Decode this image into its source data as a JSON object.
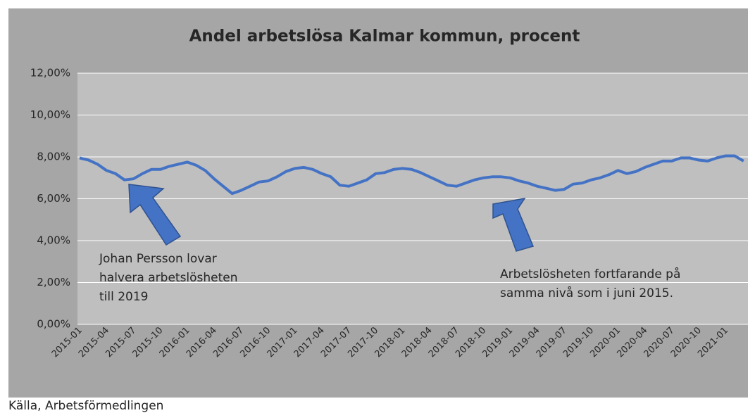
{
  "chart_data": {
    "type": "line",
    "title": "Andel arbetslösa Kalmar kommun, procent",
    "source": "Källa, Arbetsförmedlingen",
    "color": "#4472c4",
    "grid": true,
    "categories": [
      "2015-01",
      null,
      null,
      "2015-04",
      null,
      null,
      "2015-07",
      null,
      null,
      "2015-10",
      null,
      null,
      "2016-01",
      null,
      null,
      "2016-04",
      null,
      null,
      "2016-07",
      null,
      null,
      "2016-10",
      null,
      null,
      "2017-01",
      null,
      null,
      "2017-04",
      null,
      null,
      "2017-07",
      null,
      null,
      "2017-10",
      null,
      null,
      "2018-01",
      null,
      null,
      "2018-04",
      null,
      null,
      "2018-07",
      null,
      null,
      "2018-10",
      null,
      null,
      "2019-01",
      null,
      null,
      "2019-04",
      null,
      null,
      "2019-07",
      null,
      null,
      "2019-10",
      null,
      null,
      "2020-01",
      null,
      null,
      "2020-04",
      null,
      null,
      "2020-07",
      null,
      null,
      "2020-10",
      null,
      null,
      "2021-01",
      null,
      null
    ],
    "values": [
      7.95,
      7.85,
      7.65,
      7.35,
      7.2,
      6.9,
      6.95,
      7.2,
      7.4,
      7.4,
      7.55,
      7.65,
      7.75,
      7.6,
      7.35,
      6.95,
      6.6,
      6.25,
      6.4,
      6.6,
      6.8,
      6.85,
      7.05,
      7.3,
      7.45,
      7.5,
      7.4,
      7.2,
      7.05,
      6.65,
      6.6,
      6.75,
      6.9,
      7.2,
      7.25,
      7.4,
      7.45,
      7.4,
      7.25,
      7.05,
      6.85,
      6.65,
      6.6,
      6.75,
      6.9,
      7.0,
      7.05,
      7.05,
      7.0,
      6.85,
      6.75,
      6.6,
      6.5,
      6.4,
      6.45,
      6.7,
      6.75,
      6.9,
      7.0,
      7.15,
      7.35,
      7.2,
      7.3,
      7.5,
      7.65,
      7.8,
      7.8,
      7.95,
      7.95,
      7.85,
      7.8,
      7.95,
      8.05,
      8.05,
      7.8
    ],
    "ylim": [
      0,
      12
    ],
    "yticks": [
      {
        "value": 0,
        "label": "0,00%"
      },
      {
        "value": 2,
        "label": "2,00%"
      },
      {
        "value": 4,
        "label": "4,00%"
      },
      {
        "value": 6,
        "label": "6,00%"
      },
      {
        "value": 8,
        "label": "8,00%"
      },
      {
        "value": 10,
        "label": "10,00%"
      },
      {
        "value": 12,
        "label": "12,00%"
      }
    ],
    "annotations": [
      {
        "lines": [
          "Johan Persson lovar",
          "halvera arbetslösheten",
          "till 2019"
        ]
      },
      {
        "lines": [
          "Arbetslösheten fortfarande på",
          "samma nivå som i juni 2015."
        ]
      }
    ]
  }
}
